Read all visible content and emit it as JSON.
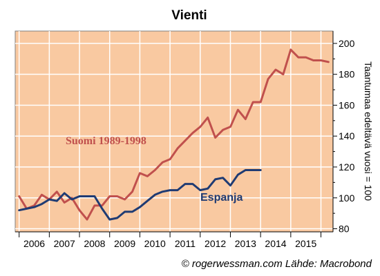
{
  "chart_data": {
    "type": "line",
    "title": "Vienti",
    "ylabel": "Taantumaa edeltävä vuosi = 100",
    "xlabel": "",
    "credit": "© rogerwessman.com Lähde: Macrobond",
    "ylim": [
      78,
      208
    ],
    "xlim": [
      2005.37,
      2015.9
    ],
    "y_ticks": [
      80,
      100,
      120,
      140,
      160,
      180,
      200
    ],
    "x_tick_labels": [
      "2006",
      "2007",
      "2008",
      "2009",
      "2010",
      "2011",
      "2012",
      "2013",
      "2014",
      "2015"
    ],
    "x_tick_positions": [
      2006.0,
      2007.0,
      2008.0,
      2009.0,
      2010.0,
      2011.0,
      2012.0,
      2013.0,
      2014.0,
      2015.0
    ],
    "grid": true,
    "legend": "inline",
    "background_color": "#f9c9a1",
    "series": [
      {
        "name": "Suomi 1989-1998",
        "color": "#c0504d",
        "x": [
          2005.5,
          2005.75,
          2006.0,
          2006.25,
          2006.5,
          2006.75,
          2007.0,
          2007.25,
          2007.5,
          2007.75,
          2008.0,
          2008.25,
          2008.5,
          2008.75,
          2009.0,
          2009.25,
          2009.5,
          2009.75,
          2010.0,
          2010.25,
          2010.5,
          2010.75,
          2011.0,
          2011.25,
          2011.5,
          2011.75,
          2012.0,
          2012.25,
          2012.5,
          2012.75,
          2013.0,
          2013.25,
          2013.5,
          2013.75,
          2014.0,
          2014.25,
          2014.5,
          2014.75,
          2015.0,
          2015.25,
          2015.5,
          2015.75
        ],
        "values": [
          101,
          93,
          95,
          102,
          99,
          104,
          97,
          100,
          92,
          86,
          95,
          95,
          101,
          101,
          99,
          104,
          116,
          114,
          118,
          123,
          125,
          132,
          137,
          142,
          146,
          152,
          139,
          144,
          146,
          157,
          151,
          162,
          162,
          177,
          183,
          180,
          196,
          191,
          191,
          189,
          189,
          188
        ]
      },
      {
        "name": "Espanja",
        "color": "#1f3b73",
        "x": [
          2005.5,
          2005.75,
          2006.0,
          2006.25,
          2006.5,
          2006.75,
          2007.0,
          2007.25,
          2007.5,
          2007.75,
          2008.0,
          2008.25,
          2008.5,
          2008.75,
          2009.0,
          2009.25,
          2009.5,
          2009.75,
          2010.0,
          2010.25,
          2010.5,
          2010.75,
          2011.0,
          2011.25,
          2011.5,
          2011.75,
          2012.0,
          2012.25,
          2012.5,
          2012.75,
          2013.0,
          2013.25,
          2013.5
        ],
        "values": [
          92,
          93,
          94,
          96,
          99,
          98,
          103,
          99,
          101,
          101,
          101,
          93,
          86,
          87,
          91,
          91,
          94,
          98,
          102,
          104,
          105,
          105,
          109,
          109,
          105,
          106,
          112,
          113,
          108,
          115,
          118,
          118,
          118
        ]
      }
    ],
    "annotations": [
      {
        "text": "Suomi 1989-1998",
        "series": 0
      },
      {
        "text": "Espanja",
        "series": 1
      }
    ]
  }
}
